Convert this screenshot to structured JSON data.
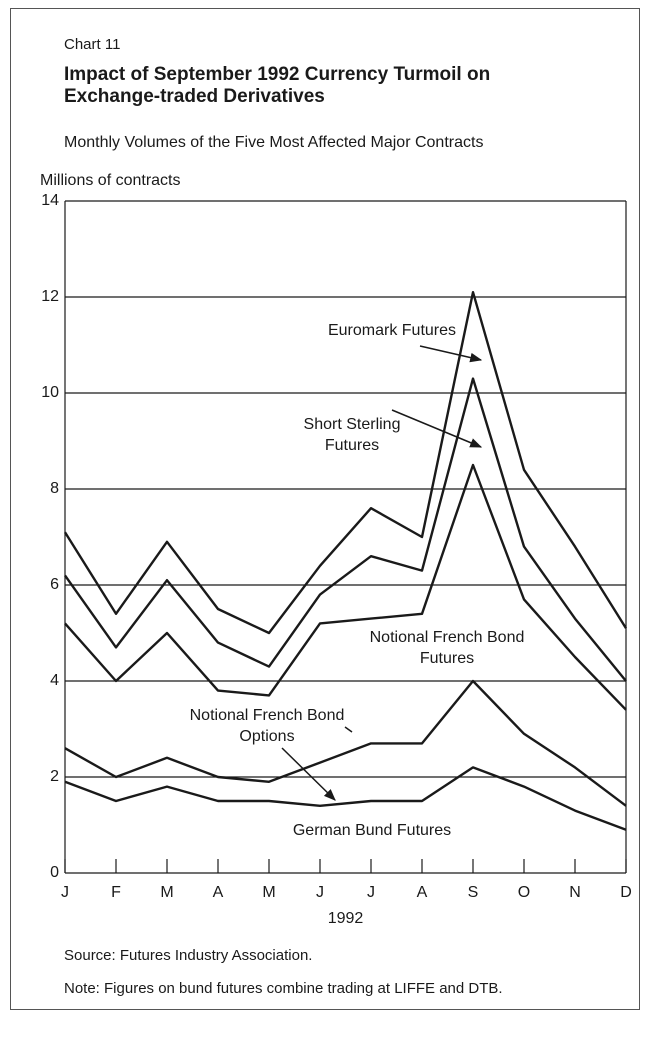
{
  "chart_data": {
    "type": "line",
    "chart_label": "Chart 11",
    "title": "Impact of September 1992 Currency Turmoil on Exchange-traded Derivatives",
    "subtitle": "Monthly Volumes of the Five Most Affected Major Contracts",
    "ylabel": "Millions of contracts",
    "xlabel": "1992",
    "categories": [
      "J",
      "F",
      "M",
      "A",
      "M",
      "J",
      "J",
      "A",
      "S",
      "O",
      "N",
      "D"
    ],
    "series": [
      {
        "name": "Euromark Futures",
        "color": "#1a1a1a",
        "values": [
          7.1,
          5.4,
          6.9,
          5.5,
          5.0,
          6.4,
          7.6,
          7.0,
          12.1,
          8.4,
          6.8,
          5.1
        ]
      },
      {
        "name": "Short Sterling Futures",
        "color": "#1a1a1a",
        "values": [
          6.2,
          4.7,
          6.1,
          4.8,
          4.3,
          5.8,
          6.6,
          6.3,
          10.3,
          6.8,
          5.3,
          4.0
        ]
      },
      {
        "name": "Notional French Bond Futures",
        "color": "#1a1a1a",
        "values": [
          5.2,
          4.0,
          5.0,
          3.8,
          3.7,
          5.2,
          5.3,
          5.4,
          8.5,
          5.7,
          4.5,
          3.4
        ]
      },
      {
        "name": "Notional French Bond Options",
        "color": "#1a1a1a",
        "values": [
          2.6,
          2.0,
          2.4,
          2.0,
          1.9,
          2.3,
          2.7,
          2.7,
          4.0,
          2.9,
          2.2,
          1.4
        ]
      },
      {
        "name": "German Bund Futures",
        "color": "#1a1a1a",
        "values": [
          1.9,
          1.5,
          1.8,
          1.5,
          1.5,
          1.4,
          1.5,
          1.5,
          2.2,
          1.8,
          1.3,
          0.9
        ]
      }
    ],
    "ylim": [
      0,
      14
    ],
    "yticks": [
      0,
      2,
      4,
      6,
      8,
      10,
      12,
      14
    ],
    "grid": true,
    "source": "Source:  Futures Industry Association.",
    "note": "Note:  Figures on bund futures combine trading at LIFFE and DTB."
  }
}
